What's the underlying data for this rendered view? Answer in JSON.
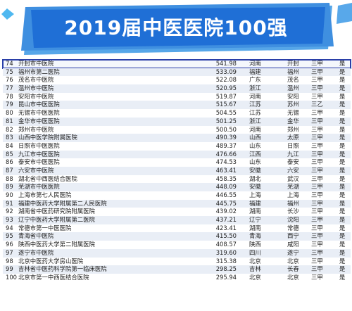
{
  "title": "2019届中医医院100强",
  "rows": [
    {
      "rank": "74",
      "name": "开封市中医院",
      "score": "541.98",
      "province": "河南",
      "city": "开封",
      "grade": "三甲",
      "double": "是"
    },
    {
      "rank": "75",
      "name": "福州市第二医院",
      "score": "533.09",
      "province": "福建",
      "city": "福州",
      "grade": "三甲",
      "double": "是"
    },
    {
      "rank": "76",
      "name": "茂名市中医院",
      "score": "522.08",
      "province": "广东",
      "city": "茂名",
      "grade": "三甲",
      "double": "是"
    },
    {
      "rank": "77",
      "name": "温州市中医院",
      "score": "520.95",
      "province": "浙江",
      "city": "温州",
      "grade": "三甲",
      "double": "是"
    },
    {
      "rank": "78",
      "name": "安阳市中医院",
      "score": "519.87",
      "province": "河南",
      "city": "安阳",
      "grade": "三甲",
      "double": "是"
    },
    {
      "rank": "79",
      "name": "昆山市中医医院",
      "score": "515.67",
      "province": "江苏",
      "city": "苏州",
      "grade": "三乙",
      "double": "是"
    },
    {
      "rank": "80",
      "name": "无锡市中医医院",
      "score": "504.55",
      "province": "江苏",
      "city": "无锡",
      "grade": "三甲",
      "double": "是"
    },
    {
      "rank": "81",
      "name": "金华市中医医院",
      "score": "501.25",
      "province": "浙江",
      "city": "金华",
      "grade": "三甲",
      "double": "是"
    },
    {
      "rank": "82",
      "name": "郑州市中医院",
      "score": "500.50",
      "province": "河南",
      "city": "郑州",
      "grade": "三甲",
      "double": "是"
    },
    {
      "rank": "83",
      "name": "山西中医学院附属医院",
      "score": "490.39",
      "province": "山西",
      "city": "太原",
      "grade": "三甲",
      "double": "是"
    },
    {
      "rank": "84",
      "name": "日照市中医医院",
      "score": "489.37",
      "province": "山东",
      "city": "日照",
      "grade": "三甲",
      "double": "是"
    },
    {
      "rank": "85",
      "name": "九江市中医医院",
      "score": "476.66",
      "province": "江西",
      "city": "九江",
      "grade": "三甲",
      "double": "是"
    },
    {
      "rank": "86",
      "name": "泰安市中医医院",
      "score": "474.53",
      "province": "山东",
      "city": "泰安",
      "grade": "三甲",
      "double": "是"
    },
    {
      "rank": "87",
      "name": "六安市中医院",
      "score": "463.41",
      "province": "安徽",
      "city": "六安",
      "grade": "三甲",
      "double": "是"
    },
    {
      "rank": "88",
      "name": "湖北省中西医结合医院",
      "score": "458.35",
      "province": "湖北",
      "city": "武汉",
      "grade": "三甲",
      "double": "是"
    },
    {
      "rank": "89",
      "name": "芜湖市中医医院",
      "score": "448.09",
      "province": "安徽",
      "city": "芜湖",
      "grade": "三甲",
      "double": "是"
    },
    {
      "rank": "90",
      "name": "上海市第七人民医院",
      "score": "446.55",
      "province": "上海",
      "city": "上海",
      "grade": "三甲",
      "double": "是"
    },
    {
      "rank": "91",
      "name": "福建中医药大学附属第二人民医院",
      "score": "445.75",
      "province": "福建",
      "city": "福州",
      "grade": "三甲",
      "double": "是"
    },
    {
      "rank": "92",
      "name": "湖南省中医药研究院附属医院",
      "score": "439.02",
      "province": "湖南",
      "city": "长沙",
      "grade": "三甲",
      "double": "是"
    },
    {
      "rank": "93",
      "name": "辽宁中医药大学附属第二医院",
      "score": "437.21",
      "province": "辽宁",
      "city": "沈阳",
      "grade": "三甲",
      "double": "是"
    },
    {
      "rank": "94",
      "name": "常德市第一中医医院",
      "score": "423.41",
      "province": "湖南",
      "city": "常德",
      "grade": "三甲",
      "double": "是"
    },
    {
      "rank": "95",
      "name": "青海省中医院",
      "score": "415.50",
      "province": "青海",
      "city": "西宁",
      "grade": "三甲",
      "double": "是"
    },
    {
      "rank": "96",
      "name": "陕西中医药大学第二附属医院",
      "score": "408.57",
      "province": "陕西",
      "city": "咸阳",
      "grade": "三甲",
      "double": "是"
    },
    {
      "rank": "97",
      "name": "遂宁市中医院",
      "score": "319.60",
      "province": "四川",
      "city": "遂宁",
      "grade": "三甲",
      "double": "是"
    },
    {
      "rank": "98",
      "name": "北京中医药大学房山医院",
      "score": "315.38",
      "province": "北京",
      "city": "北京",
      "grade": "三甲",
      "double": "是"
    },
    {
      "rank": "99",
      "name": "吉林省中医药科学院第一临床医院",
      "score": "298.25",
      "province": "吉林",
      "city": "长春",
      "grade": "三甲",
      "double": "是"
    },
    {
      "rank": "100",
      "name": "北京市第一中西医结合医院",
      "score": "295.94",
      "province": "北京",
      "city": "北京",
      "grade": "三甲",
      "double": "是"
    }
  ]
}
